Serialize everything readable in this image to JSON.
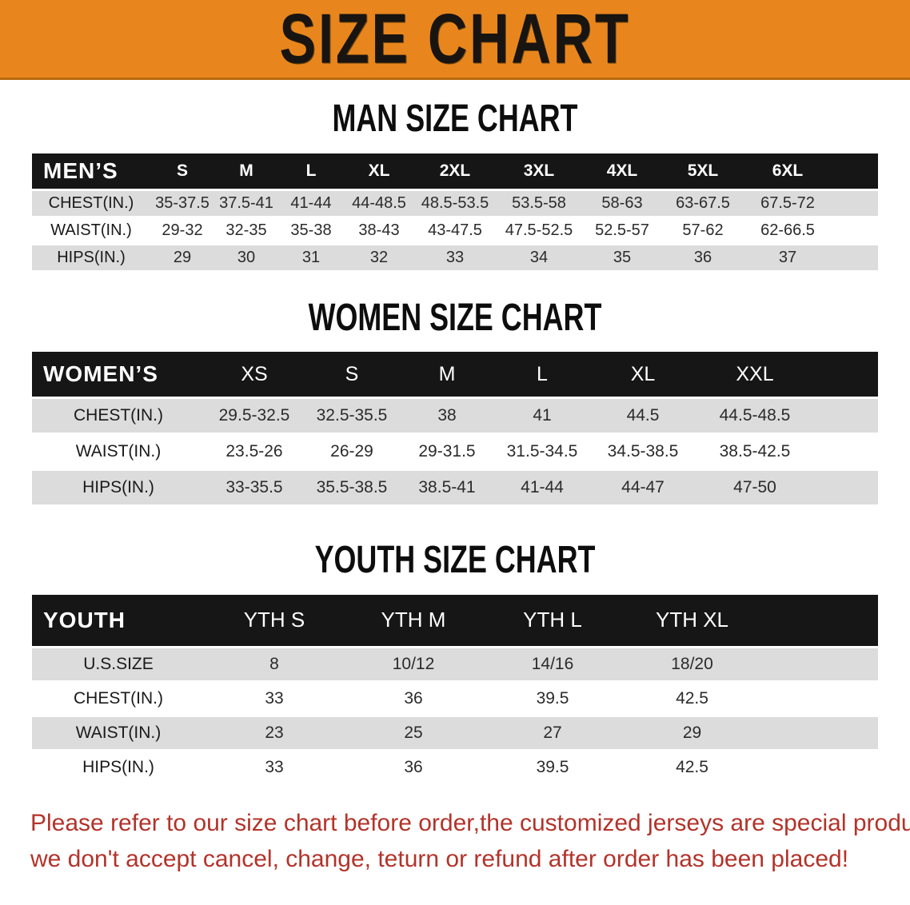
{
  "banner": {
    "title": "SIZE CHART",
    "bg_color": "#e8861d",
    "border_color": "#b8690f",
    "text_color": "#181411"
  },
  "sections": [
    {
      "heading": "MAN SIZE CHART",
      "label_header": "MEN’S",
      "columns": [
        "S",
        "M",
        "L",
        "XL",
        "2XL",
        "3XL",
        "4XL",
        "5XL",
        "6XL"
      ],
      "rows": [
        {
          "label": "CHEST(IN.)",
          "values": [
            "35-37.5",
            "37.5-41",
            "41-44",
            "44-48.5",
            "48.5-53.5",
            "53.5-58",
            "58-63",
            "63-67.5",
            "67.5-72"
          ]
        },
        {
          "label": "WAIST(IN.)",
          "values": [
            "29-32",
            "32-35",
            "35-38",
            "38-43",
            "43-47.5",
            "47.5-52.5",
            "52.5-57",
            "57-62",
            "62-66.5"
          ]
        },
        {
          "label": "HIPS(IN.)",
          "values": [
            "29",
            "30",
            "31",
            "32",
            "33",
            "34",
            "35",
            "36",
            "37"
          ]
        }
      ]
    },
    {
      "heading": "WOMEN SIZE CHART",
      "label_header": "WOMEN’S",
      "columns": [
        "XS",
        "S",
        "M",
        "L",
        "XL",
        "XXL"
      ],
      "rows": [
        {
          "label": "CHEST(IN.)",
          "values": [
            "29.5-32.5",
            "32.5-35.5",
            "38",
            "41",
            "44.5",
            "44.5-48.5"
          ]
        },
        {
          "label": "WAIST(IN.)",
          "values": [
            "23.5-26",
            "26-29",
            "29-31.5",
            "31.5-34.5",
            "34.5-38.5",
            "38.5-42.5"
          ]
        },
        {
          "label": "HIPS(IN.)",
          "values": [
            "33-35.5",
            "35.5-38.5",
            "38.5-41",
            "41-44",
            "44-47",
            "47-50"
          ]
        }
      ]
    },
    {
      "heading": "YOUTH SIZE CHART",
      "label_header": "YOUTH",
      "columns": [
        "YTH S",
        "YTH M",
        "YTH L",
        "YTH XL"
      ],
      "rows": [
        {
          "label": "U.S.SIZE",
          "values": [
            "8",
            "10/12",
            "14/16",
            "18/20"
          ]
        },
        {
          "label": "CHEST(IN.)",
          "values": [
            "33",
            "36",
            "39.5",
            "42.5"
          ]
        },
        {
          "label": "WAIST(IN.)",
          "values": [
            "23",
            "25",
            "27",
            "29"
          ]
        },
        {
          "label": "HIPS(IN.)",
          "values": [
            "33",
            "36",
            "39.5",
            "42.5"
          ]
        }
      ]
    }
  ],
  "disclaimer": {
    "line1": "Please refer to our size chart before order,the customized jerseys are special products,",
    "line2": "we don't accept cancel, change, teturn or refund after order has been placed!",
    "color": "#b3332a"
  },
  "row_stripe_color": "#dcdcdc",
  "header_bg_color": "#161616"
}
